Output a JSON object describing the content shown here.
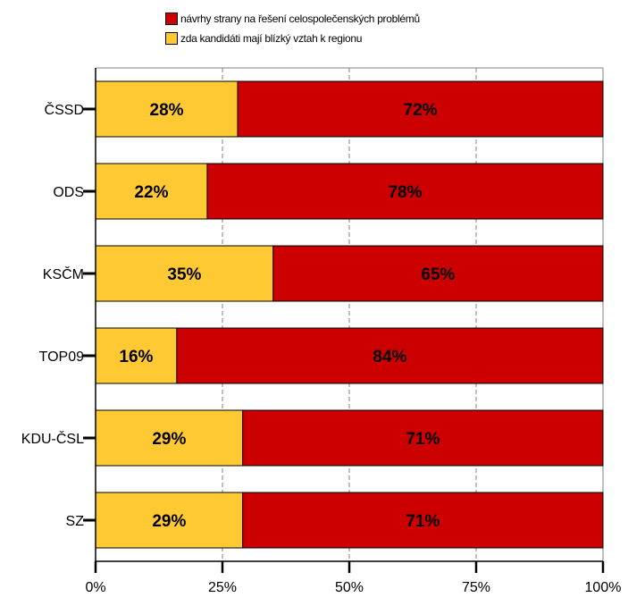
{
  "chart_data": {
    "type": "bar",
    "orientation": "horizontal",
    "stacked": true,
    "percent": true,
    "categories": [
      "ČSSD",
      "ODS",
      "KSČM",
      "TOP09",
      "KDU-ČSL",
      "SZ"
    ],
    "series": [
      {
        "name": "zda kandidáti mají blízký vztah k regionu",
        "color": "#FFC933",
        "values": [
          28,
          22,
          35,
          16,
          29,
          29
        ],
        "labels": [
          "28%",
          "22%",
          "35%",
          "16%",
          "29%",
          "29%"
        ]
      },
      {
        "name": "návrhy strany na řešení celospolečenských problémů",
        "color": "#CC0000",
        "values": [
          72,
          78,
          65,
          84,
          71,
          71
        ],
        "labels": [
          "72%",
          "78%",
          "65%",
          "84%",
          "71%",
          "71%"
        ]
      }
    ],
    "xlim": [
      0,
      100
    ],
    "xticks": [
      "0%",
      "25%",
      "50%",
      "75%",
      "100%"
    ],
    "grid": "vertical dashed",
    "legend_position": "top"
  },
  "legend": [
    {
      "label": "návrhy strany na řešení celospolečenských problémů",
      "color": "#CC0000"
    },
    {
      "label": "zda kandidáti mají blízký vztah k regionu",
      "color": "#FFC933"
    }
  ]
}
